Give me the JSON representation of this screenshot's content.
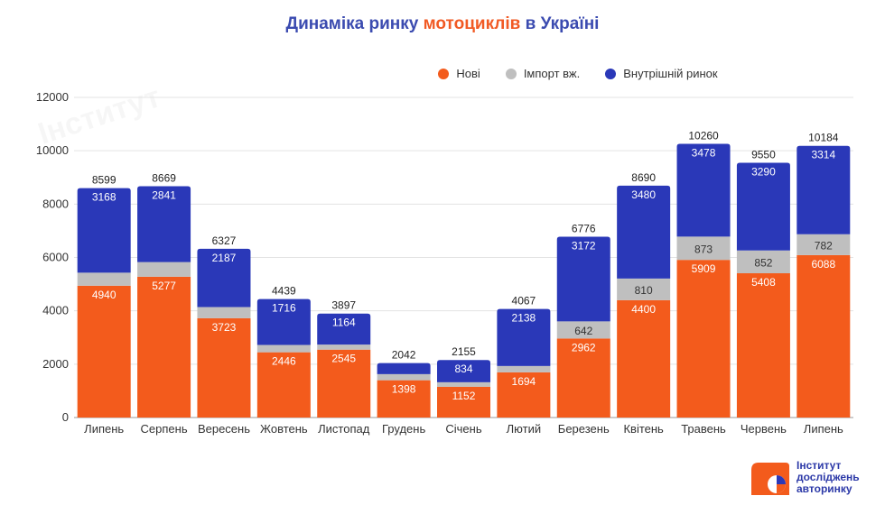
{
  "title": {
    "prefix": "Динаміка ринку ",
    "highlight": "мотоциклів",
    "suffix": " в Україні"
  },
  "logo": {
    "line1": "Інститут",
    "line2": "досліджень",
    "line3": "авторинку"
  },
  "colors": {
    "new": "#f35b1c",
    "import": "#bfbfbf",
    "domestic": "#2a38b8",
    "title": "#3b4bb0",
    "title_highlight": "#f15a24"
  },
  "chart_data": {
    "type": "bar",
    "stacked": true,
    "title": "Динаміка ринку мотоциклів в Україні",
    "legend_position": "top-center",
    "grid": true,
    "ylim": [
      0,
      12000
    ],
    "yticks": [
      "0",
      "2000",
      "4000",
      "6000",
      "8000",
      "10000",
      "12000"
    ],
    "categories": [
      "Липень",
      "Серпень",
      "Вересень",
      "Жовтень",
      "Листопад",
      "Грудень",
      "Січень",
      "Лютий",
      "Березень",
      "Квітень",
      "Травень",
      "Червень",
      "Липень"
    ],
    "series": [
      {
        "name": "Нові",
        "color": "#f35b1c",
        "values": [
          4940,
          5277,
          3723,
          2446,
          2545,
          1398,
          1152,
          1694,
          2962,
          4400,
          5909,
          5408,
          6088
        ],
        "labels": [
          "4940",
          "5277",
          "3723",
          "2446",
          "2545",
          "1398",
          "1152",
          "1694",
          "2962",
          "4400",
          "5909",
          "5408",
          "6088"
        ]
      },
      {
        "name": "Імпорт вж.",
        "color": "#bfbfbf",
        "values": [
          491,
          551,
          417,
          277,
          188,
          230,
          169,
          235,
          642,
          810,
          873,
          852,
          782
        ],
        "labels": [
          "",
          "",
          "",
          "",
          "",
          "",
          "",
          "",
          "642",
          "810",
          "873",
          "852",
          "782"
        ]
      },
      {
        "name": "Внутрішній ринок",
        "color": "#2a38b8",
        "values": [
          3168,
          2841,
          2187,
          1716,
          1164,
          414,
          834,
          2138,
          3172,
          3480,
          3478,
          3290,
          3314
        ],
        "labels": [
          "3168",
          "2841",
          "2187",
          "1716",
          "1164",
          "",
          "834",
          "2138",
          "3172",
          "3480",
          "3478",
          "3290",
          "3314"
        ]
      }
    ],
    "totals": [
      "8599",
      "8669",
      "6327",
      "4439",
      "3897",
      "2042",
      "2155",
      "4067",
      "6776",
      "8690",
      "10260",
      "9550",
      "10184"
    ]
  }
}
